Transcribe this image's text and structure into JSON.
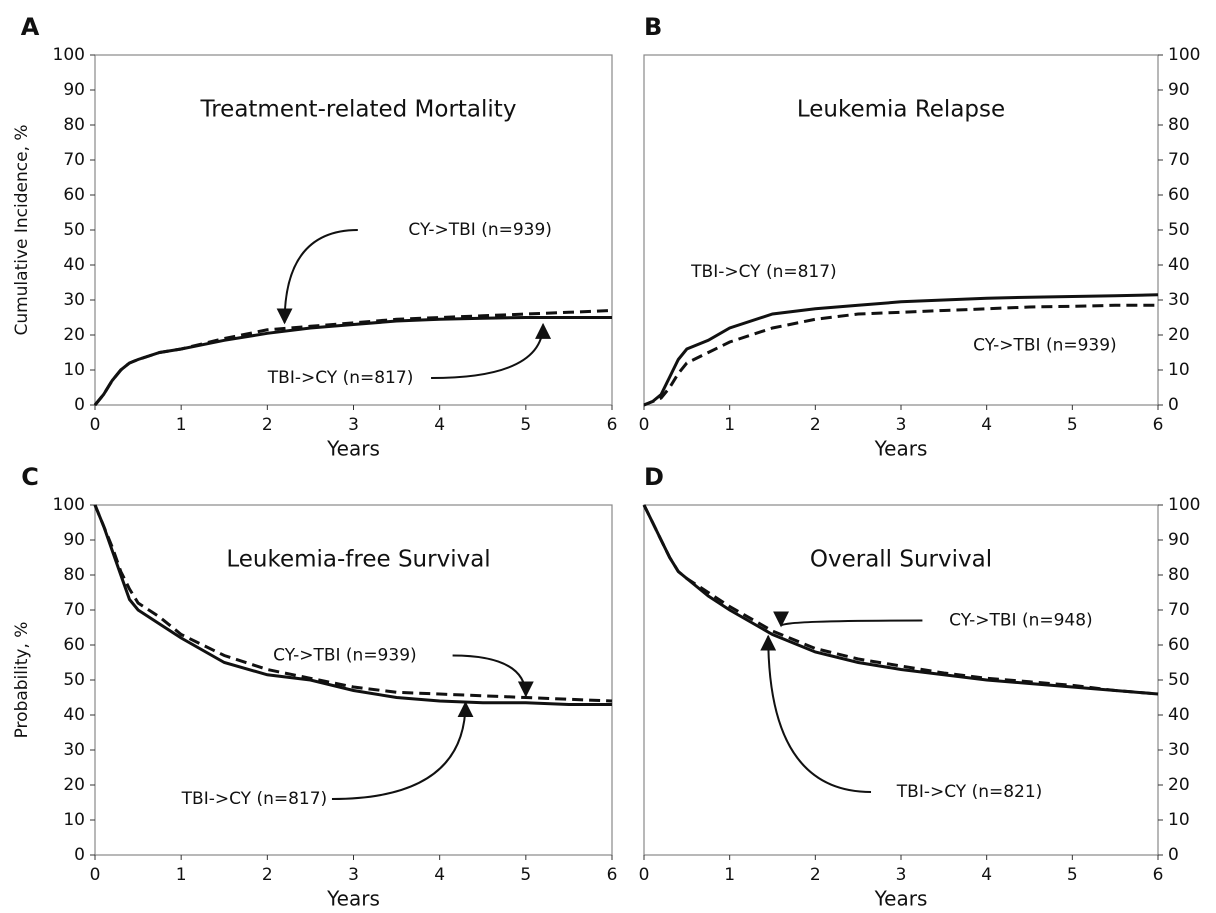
{
  "chart_data": [
    {
      "type": "line",
      "panel": "A",
      "title": "Treatment-related Mortality",
      "x_label": "Years",
      "y_label": "Cumulative Incidence, %",
      "y_axis_side": "left",
      "x": [
        0,
        0.1,
        0.2,
        0.3,
        0.4,
        0.5,
        0.75,
        1,
        1.5,
        2,
        2.5,
        3,
        3.5,
        4,
        4.5,
        5,
        5.5,
        6
      ],
      "series": [
        {
          "name": "TBI->CY (n=817)",
          "color": "#111111",
          "dash": false,
          "values": [
            0,
            3,
            7,
            10,
            12,
            13,
            15,
            16,
            18.5,
            20.5,
            22,
            23,
            24,
            24.5,
            24.8,
            25,
            25,
            25
          ]
        },
        {
          "name": "CY->TBI (n=939)",
          "color": "#111111",
          "dash": true,
          "values": [
            0,
            3,
            7,
            10,
            12,
            13,
            15,
            16,
            19,
            21.5,
            22.5,
            23.5,
            24.5,
            25,
            25.5,
            26,
            26.5,
            27
          ]
        }
      ],
      "xlim": [
        0,
        6
      ],
      "xticks": [
        0,
        1,
        2,
        3,
        4,
        5,
        6
      ],
      "ylim": [
        0,
        100
      ],
      "yticks": [
        0,
        10,
        20,
        30,
        40,
        50,
        60,
        70,
        80,
        90,
        100
      ]
    },
    {
      "type": "line",
      "panel": "B",
      "title": "Leukemia Relapse",
      "x_label": "Years",
      "y_axis_side": "right",
      "x": [
        0,
        0.1,
        0.2,
        0.3,
        0.4,
        0.5,
        0.75,
        1,
        1.5,
        2,
        2.5,
        3,
        3.5,
        4,
        4.5,
        5,
        5.5,
        6
      ],
      "series": [
        {
          "name": "TBI->CY (n=817)",
          "color": "#111111",
          "dash": false,
          "values": [
            0,
            1,
            3,
            8,
            13,
            16,
            18.5,
            22,
            26,
            27.5,
            28.5,
            29.5,
            30,
            30.5,
            30.8,
            31,
            31.2,
            31.5
          ]
        },
        {
          "name": "CY->TBI (n=939)",
          "color": "#111111",
          "dash": true,
          "values": [
            0,
            1,
            2,
            5,
            9,
            12,
            15,
            18,
            22,
            24.5,
            26,
            26.5,
            27,
            27.5,
            28,
            28.2,
            28.5,
            28.5
          ]
        }
      ],
      "xlim": [
        0,
        6
      ],
      "xticks": [
        0,
        1,
        2,
        3,
        4,
        5,
        6
      ],
      "ylim": [
        0,
        100
      ],
      "yticks": [
        0,
        10,
        20,
        30,
        40,
        50,
        60,
        70,
        80,
        90,
        100
      ]
    },
    {
      "type": "line",
      "panel": "C",
      "title": "Leukemia-free Survival",
      "x_label": "Years",
      "y_label": "Probability, %",
      "y_axis_side": "left",
      "x": [
        0,
        0.1,
        0.2,
        0.3,
        0.4,
        0.5,
        0.75,
        1,
        1.5,
        2,
        2.5,
        3,
        3.5,
        4,
        4.5,
        5,
        5.5,
        6
      ],
      "series": [
        {
          "name": "TBI->CY (n=817)",
          "color": "#111111",
          "dash": false,
          "values": [
            100,
            94,
            87,
            80,
            73,
            70,
            66,
            62,
            55,
            51.5,
            50,
            47,
            45,
            44,
            43.5,
            43.5,
            43,
            43
          ]
        },
        {
          "name": "CY->TBI (n=939)",
          "color": "#111111",
          "dash": true,
          "values": [
            100,
            94,
            88,
            81,
            76,
            72,
            68,
            63,
            57,
            53,
            50.5,
            48,
            46.5,
            46,
            45.5,
            45,
            44.5,
            44
          ]
        }
      ],
      "xlim": [
        0,
        6
      ],
      "xticks": [
        0,
        1,
        2,
        3,
        4,
        5,
        6
      ],
      "ylim": [
        0,
        100
      ],
      "yticks": [
        0,
        10,
        20,
        30,
        40,
        50,
        60,
        70,
        80,
        90,
        100
      ]
    },
    {
      "type": "line",
      "panel": "D",
      "title": "Overall Survival",
      "x_label": "Years",
      "y_axis_side": "right",
      "x": [
        0,
        0.1,
        0.2,
        0.3,
        0.4,
        0.5,
        0.75,
        1,
        1.5,
        2,
        2.5,
        3,
        3.5,
        4,
        4.5,
        5,
        5.5,
        6
      ],
      "series": [
        {
          "name": "TBI->CY (n=821)",
          "color": "#111111",
          "dash": false,
          "values": [
            100,
            95,
            90,
            85,
            81,
            79,
            74,
            70,
            63,
            58,
            55,
            53,
            51.5,
            50,
            49,
            48,
            47,
            46
          ]
        },
        {
          "name": "CY->TBI (n=948)",
          "color": "#111111",
          "dash": true,
          "values": [
            100,
            95,
            90,
            85,
            81,
            79,
            75,
            71,
            64,
            59,
            56,
            54,
            52,
            50.5,
            49.5,
            48.5,
            47,
            46
          ]
        }
      ],
      "xlim": [
        0,
        6
      ],
      "xticks": [
        0,
        1,
        2,
        3,
        4,
        5,
        6
      ],
      "ylim": [
        0,
        100
      ],
      "yticks": [
        0,
        10,
        20,
        30,
        40,
        50,
        60,
        70,
        80,
        90,
        100
      ]
    }
  ]
}
